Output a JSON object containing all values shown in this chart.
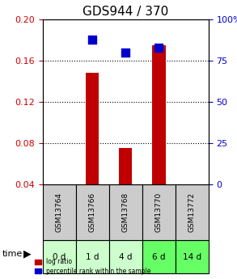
{
  "title": "GDS944 / 370",
  "samples": [
    "GSM13764",
    "GSM13766",
    "GSM13768",
    "GSM13770",
    "GSM13772"
  ],
  "time_labels": [
    "0 d",
    "1 d",
    "4 d",
    "6 d",
    "14 d"
  ],
  "log_ratio": [
    0.0,
    0.148,
    0.075,
    0.175,
    0.0
  ],
  "percentile_rank": [
    0.0,
    88.0,
    80.0,
    83.0,
    0.0
  ],
  "left_ylim": [
    0.04,
    0.2
  ],
  "right_ylim": [
    0,
    100
  ],
  "left_yticks": [
    0.04,
    0.08,
    0.12,
    0.16,
    0.2
  ],
  "right_yticks": [
    0,
    25,
    50,
    75,
    100
  ],
  "right_yticklabels": [
    "0",
    "25",
    "50",
    "75",
    "100%"
  ],
  "bar_color": "#c00000",
  "point_color": "#0000cc",
  "left_tick_color": "#cc0000",
  "right_tick_color": "#0000cc",
  "grid_color": "#000000",
  "sample_bg_color": "#cccccc",
  "time_bg_colors": [
    "#ccffcc",
    "#ccffcc",
    "#ccffcc",
    "#66ff66",
    "#66ff66"
  ],
  "title_fontsize": 11,
  "tick_fontsize": 8,
  "bar_width": 0.4,
  "point_size": 50
}
